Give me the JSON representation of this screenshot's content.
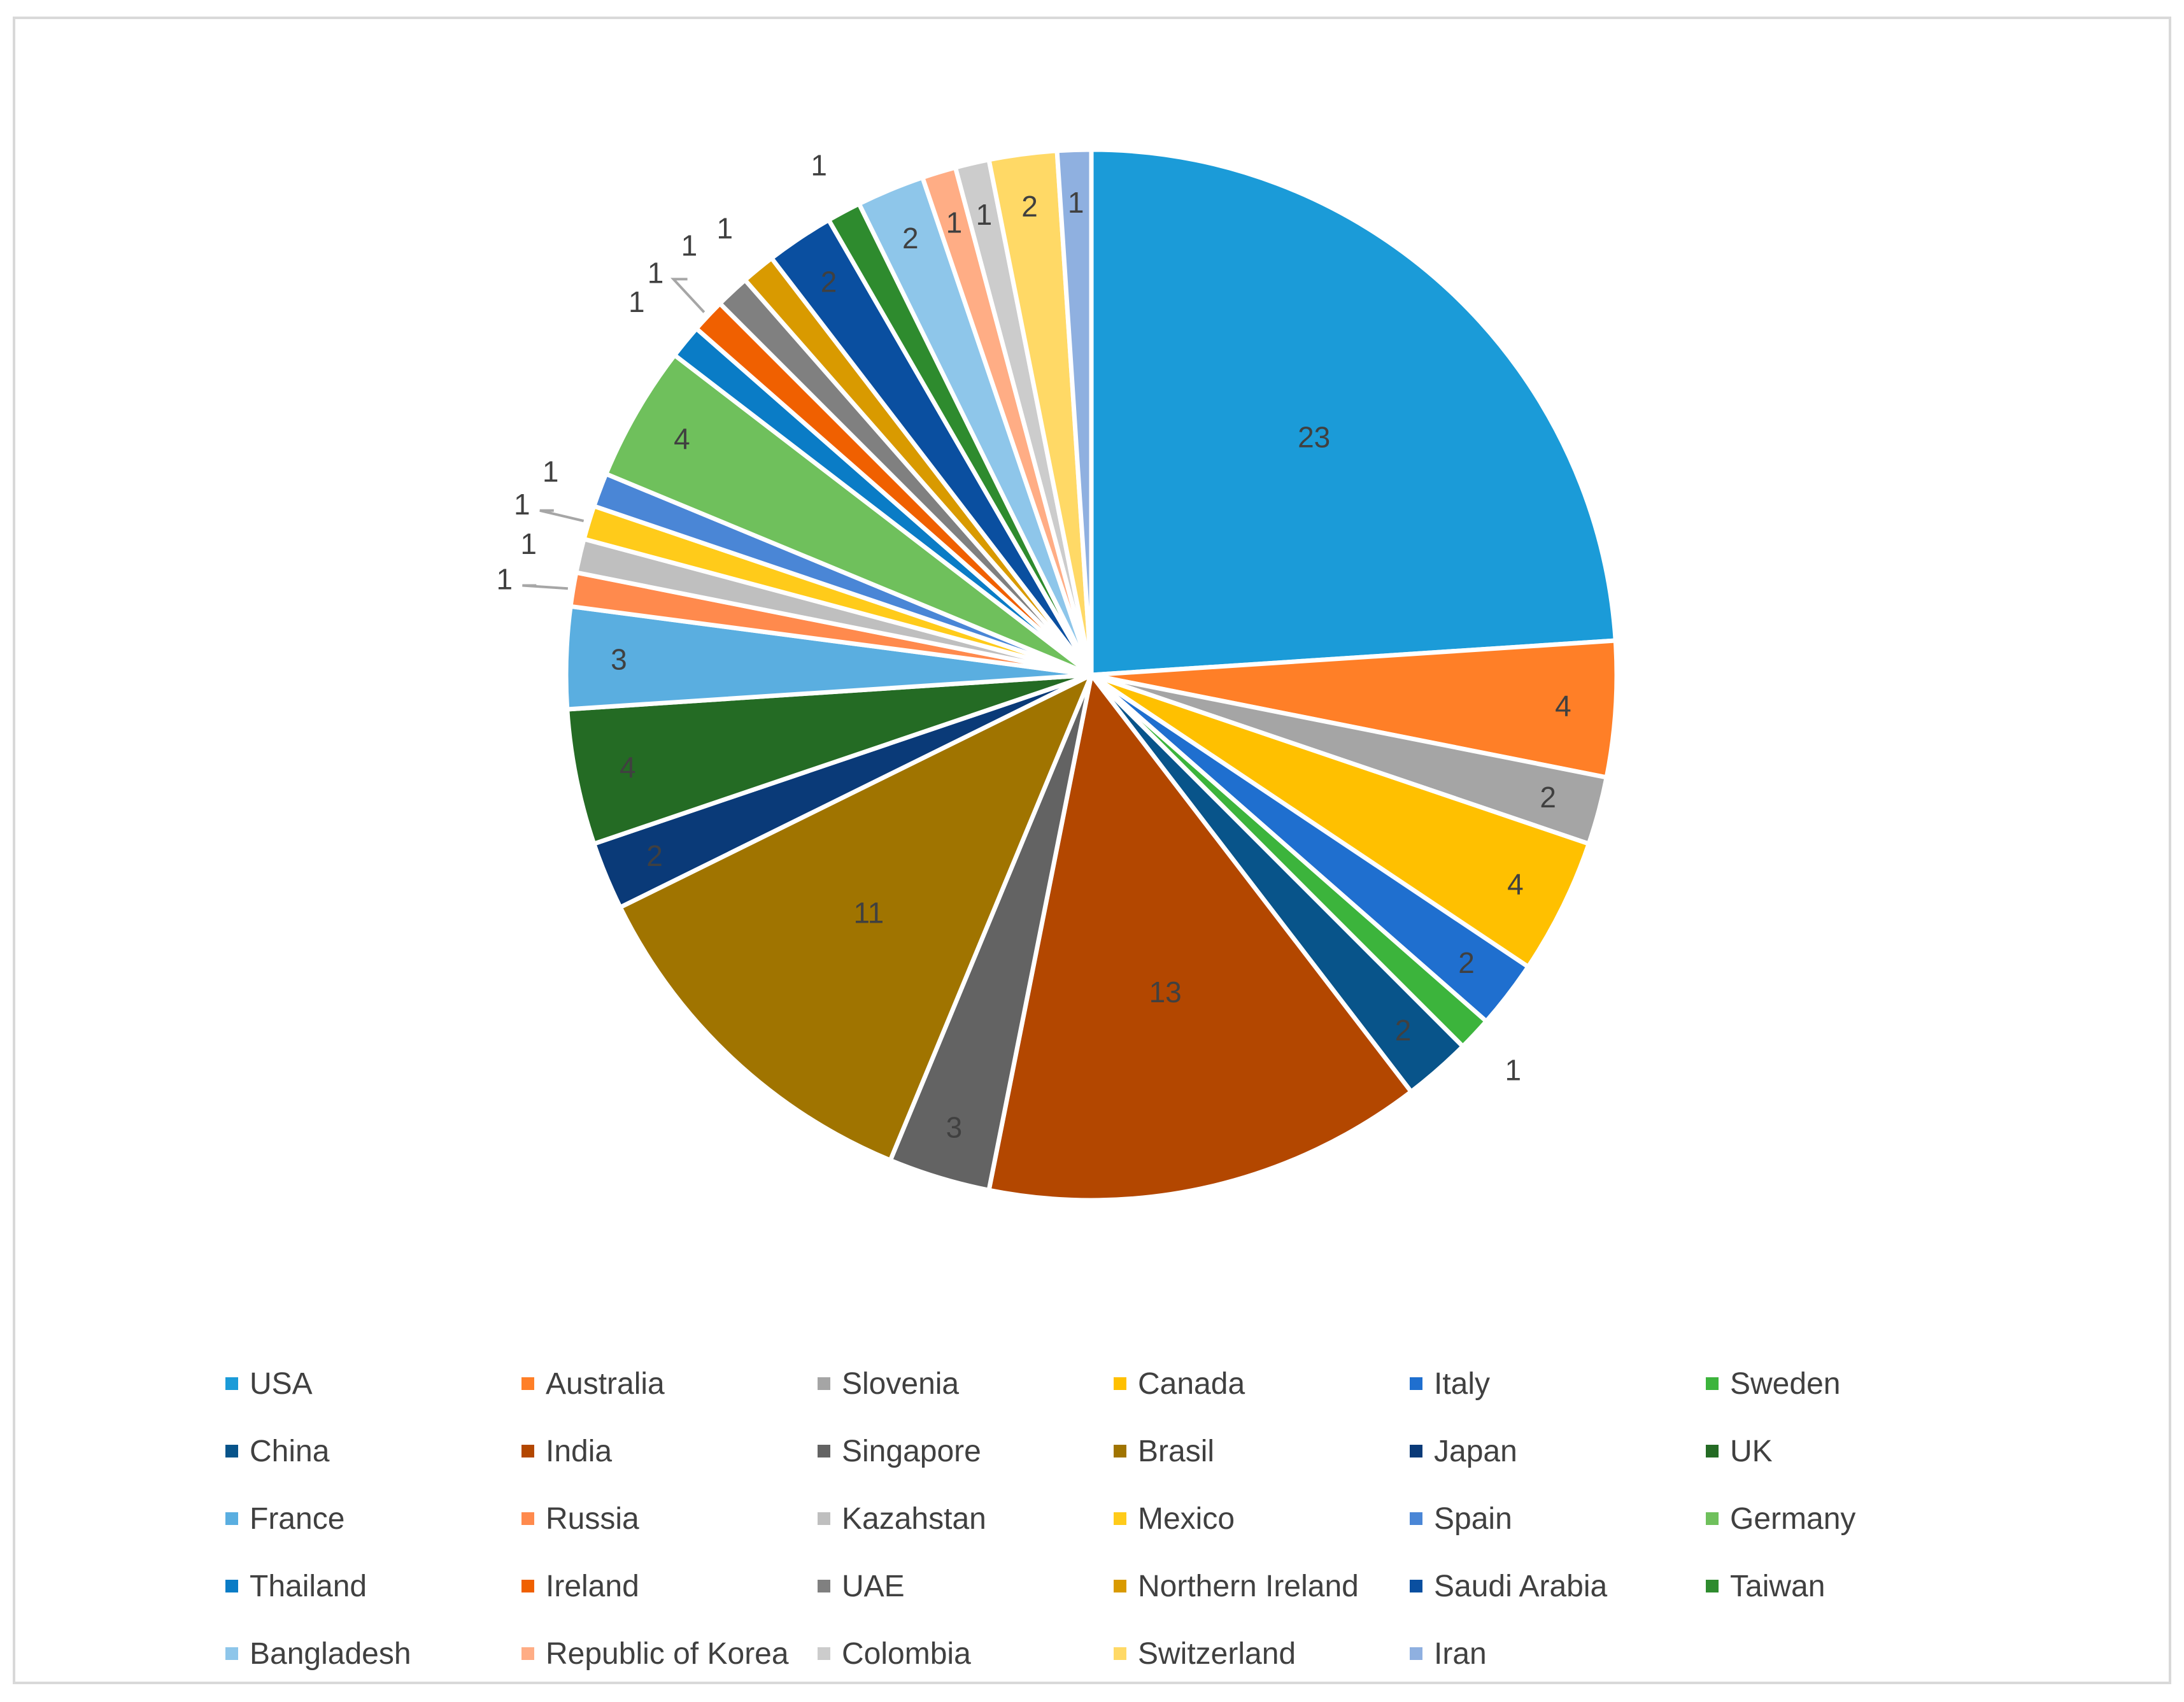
{
  "chart_data": {
    "type": "pie",
    "title": "",
    "legend_position": "bottom",
    "slices": [
      {
        "label": "USA",
        "value": 23,
        "color": "#1b9bd8"
      },
      {
        "label": "Australia",
        "value": 4,
        "color": "#ff7f27"
      },
      {
        "label": "Slovenia",
        "value": 2,
        "color": "#a5a5a5"
      },
      {
        "label": "Canada",
        "value": 4,
        "color": "#ffc000"
      },
      {
        "label": "Italy",
        "value": 2,
        "color": "#1f6fcf"
      },
      {
        "label": "Sweden",
        "value": 1,
        "color": "#3cb43c"
      },
      {
        "label": "China",
        "value": 2,
        "color": "#08548a"
      },
      {
        "label": "India",
        "value": 13,
        "color": "#b34700"
      },
      {
        "label": "Singapore",
        "value": 3,
        "color": "#636363"
      },
      {
        "label": "Brasil",
        "value": 11,
        "color": "#a07400"
      },
      {
        "label": "Japan",
        "value": 2,
        "color": "#0a3a78"
      },
      {
        "label": "UK",
        "value": 4,
        "color": "#246b24"
      },
      {
        "label": "France",
        "value": 3,
        "color": "#5aaee0"
      },
      {
        "label": "Russia",
        "value": 1,
        "color": "#ff8a4d"
      },
      {
        "label": "Kazahstan",
        "value": 1,
        "color": "#bfbfbf"
      },
      {
        "label": "Mexico",
        "value": 1,
        "color": "#ffcb1a"
      },
      {
        "label": "Spain",
        "value": 1,
        "color": "#4a86d6"
      },
      {
        "label": "Germany",
        "value": 4,
        "color": "#6fc05c"
      },
      {
        "label": "Thailand",
        "value": 1,
        "color": "#0a7cc6"
      },
      {
        "label": "Ireland",
        "value": 1,
        "color": "#f06000"
      },
      {
        "label": "UAE",
        "value": 1,
        "color": "#808080"
      },
      {
        "label": "Northern Ireland",
        "value": 1,
        "color": "#d99a00"
      },
      {
        "label": "Saudi Arabia",
        "value": 2,
        "color": "#0a4fa0"
      },
      {
        "label": "Taiwan",
        "value": 1,
        "color": "#2e8b2e"
      },
      {
        "label": "Bangladesh",
        "value": 2,
        "color": "#8ec6ea"
      },
      {
        "label": "Republic of Korea",
        "value": 1,
        "color": "#ffad85"
      },
      {
        "label": "Colombia",
        "value": 1,
        "color": "#cccccc"
      },
      {
        "label": "Switzerland",
        "value": 2,
        "color": "#ffd966"
      },
      {
        "label": "Iran",
        "value": 1,
        "color": "#8fb0e0"
      }
    ]
  }
}
